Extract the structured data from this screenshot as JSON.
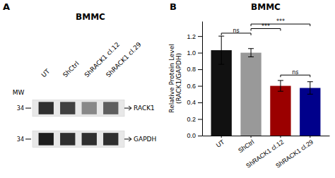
{
  "chart_data": [
    {
      "type": "heatmap",
      "title": "BMMC",
      "annotations": [
        {
          "text": "A"
        }
      ],
      "x": [
        "UT",
        "ShCtrl",
        "ShRACK1 cl.12",
        "ShRACK1 cl.29"
      ],
      "y": [
        "RACK1",
        "GAPDH"
      ],
      "ylabel": "MW",
      "mw": [
        34,
        34
      ],
      "values": [
        [
          0.85,
          0.8,
          0.55,
          0.7
        ],
        [
          0.9,
          0.85,
          0.85,
          0.85
        ]
      ]
    },
    {
      "type": "bar",
      "title": "BMMC",
      "annotations": [
        {
          "text": "B"
        },
        {
          "text": "ns",
          "from": "UT",
          "to": "ShCtrl",
          "y": 1.21
        },
        {
          "text": "***",
          "from": "ShCtrl",
          "to": "ShRACK1 cl.12",
          "y": 1.265
        },
        {
          "text": "***",
          "from": "ShCtrl",
          "to": "ShRACK1 cl.29",
          "y": 1.32
        },
        {
          "text": "ns",
          "from": "ShRACK1 cl.12",
          "to": "ShRACK1 cl.29",
          "y": 0.705
        }
      ],
      "categories": [
        "UT",
        "ShCtrl",
        "ShRACK1 cl.12",
        "ShRACK1 cl.29"
      ],
      "values": [
        1.03,
        1.0,
        0.6,
        0.575
      ],
      "errors": [
        0.17,
        0.05,
        0.065,
        0.075
      ],
      "colors": [
        "#111111",
        "#999999",
        "#9b0000",
        "#00008b"
      ],
      "ylabel": "Relative Protein Level\n(RACK1/GAPDH)",
      "ylim": [
        0,
        1.38
      ],
      "yticks": [
        {
          "value": 0.0,
          "label": "0.0"
        },
        0.2,
        0.4,
        0.6,
        0.8,
        {
          "value": 1.0,
          "label": "1.0"
        },
        1.2
      ],
      "grid": false
    }
  ]
}
